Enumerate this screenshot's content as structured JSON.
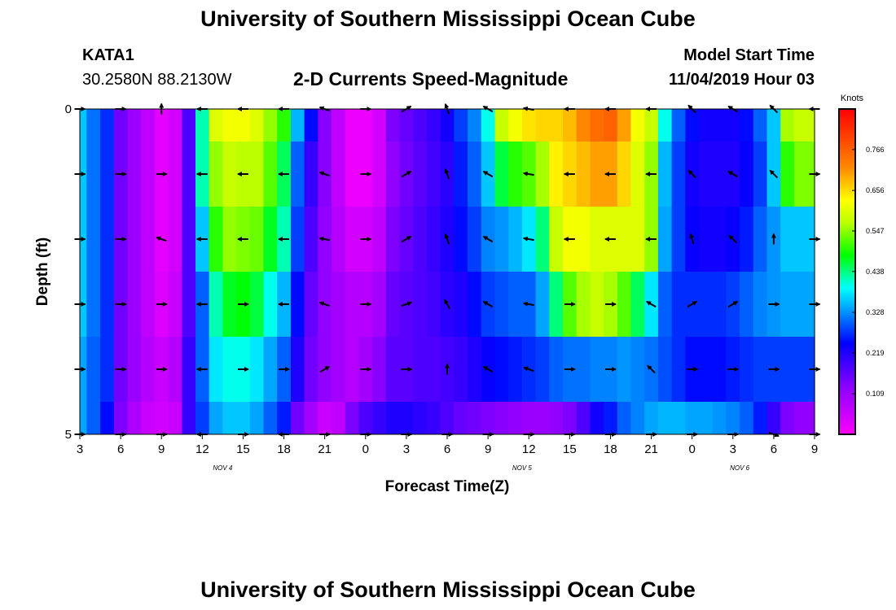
{
  "page": {
    "title_top": "University of Southern Mississippi Ocean Cube",
    "title_bottom": "University of Southern Mississippi Ocean Cube",
    "station_id": "KATA1",
    "station_coords": "30.2580N 88.2130W",
    "subtitle": "2-D Currents Speed-Magnitude",
    "model_start_label": "Model Start Time",
    "model_start_value": "11/04/2019 Hour 03"
  },
  "chart_data": {
    "type": "heatmap",
    "title": "2-D Currents Speed-Magnitude",
    "xlabel": "Forecast Time(Z)",
    "ylabel": "Depth (ft)",
    "colorbar_label": "Knots",
    "colorbar_ticks": [
      "0.766",
      "0.656",
      "0.547",
      "0.438",
      "0.328",
      "0.219",
      "0.109"
    ],
    "colorbar_tick_values": [
      0.766,
      0.656,
      0.547,
      0.438,
      0.328,
      0.219,
      0.109
    ],
    "value_range": [
      0,
      0.875
    ],
    "ylim": [
      0,
      5
    ],
    "y_ticks": [
      "0",
      "5"
    ],
    "xlim": [
      3,
      57
    ],
    "x_ticks": [
      {
        "hour": 3,
        "label": "3"
      },
      {
        "hour": 6,
        "label": "6"
      },
      {
        "hour": 9,
        "label": "9"
      },
      {
        "hour": 12,
        "label": "12"
      },
      {
        "hour": 15,
        "label": "15"
      },
      {
        "hour": 18,
        "label": "18"
      },
      {
        "hour": 21,
        "label": "21"
      },
      {
        "hour": 24,
        "label": "0"
      },
      {
        "hour": 27,
        "label": "3"
      },
      {
        "hour": 30,
        "label": "6"
      },
      {
        "hour": 33,
        "label": "9"
      },
      {
        "hour": 36,
        "label": "12"
      },
      {
        "hour": 39,
        "label": "15"
      },
      {
        "hour": 42,
        "label": "18"
      },
      {
        "hour": 45,
        "label": "21"
      },
      {
        "hour": 48,
        "label": "0"
      },
      {
        "hour": 51,
        "label": "3"
      },
      {
        "hour": 54,
        "label": "6"
      },
      {
        "hour": 57,
        "label": "9"
      }
    ],
    "date_labels": [
      {
        "hour": 13.5,
        "label": "NOV 4"
      },
      {
        "hour": 35.5,
        "label": "NOV 5"
      },
      {
        "hour": 51.5,
        "label": "NOV 6"
      }
    ],
    "depth_levels": [
      0.5,
      1.5,
      2.5,
      3.5,
      4.5,
      5.0
    ],
    "times": [
      3,
      4,
      5,
      6,
      7,
      8,
      9,
      10,
      11,
      12,
      13,
      14,
      15,
      16,
      17,
      18,
      19,
      20,
      21,
      22,
      23,
      24,
      25,
      26,
      27,
      28,
      29,
      30,
      31,
      32,
      33,
      34,
      35,
      36,
      37,
      38,
      39,
      40,
      41,
      42,
      43,
      44,
      45,
      46,
      47,
      48,
      49,
      50,
      51,
      52,
      53,
      54,
      55,
      56,
      57
    ],
    "speed_rows": [
      [
        0.36,
        0.31,
        0.27,
        0.15,
        0.11,
        0.07,
        0.03,
        0.05,
        0.18,
        0.42,
        0.6,
        0.62,
        0.62,
        0.6,
        0.55,
        0.5,
        0.35,
        0.25,
        0.13,
        0.07,
        0.02,
        0.02,
        0.05,
        0.14,
        0.16,
        0.18,
        0.2,
        0.23,
        0.28,
        0.32,
        0.4,
        0.58,
        0.62,
        0.65,
        0.66,
        0.66,
        0.68,
        0.72,
        0.75,
        0.76,
        0.7,
        0.62,
        0.58,
        0.4,
        0.3,
        0.25,
        0.23,
        0.23,
        0.23,
        0.25,
        0.3,
        0.36,
        0.56,
        0.58,
        0.58
      ],
      [
        0.36,
        0.31,
        0.27,
        0.15,
        0.11,
        0.07,
        0.03,
        0.05,
        0.18,
        0.42,
        0.55,
        0.58,
        0.57,
        0.57,
        0.52,
        0.45,
        0.3,
        0.2,
        0.13,
        0.07,
        0.02,
        0.02,
        0.05,
        0.12,
        0.15,
        0.17,
        0.19,
        0.21,
        0.26,
        0.3,
        0.36,
        0.46,
        0.5,
        0.52,
        0.56,
        0.64,
        0.66,
        0.68,
        0.7,
        0.7,
        0.66,
        0.6,
        0.55,
        0.35,
        0.28,
        0.23,
        0.22,
        0.22,
        0.22,
        0.24,
        0.28,
        0.36,
        0.5,
        0.54,
        0.54
      ],
      [
        0.36,
        0.31,
        0.27,
        0.15,
        0.11,
        0.07,
        0.03,
        0.05,
        0.18,
        0.36,
        0.5,
        0.55,
        0.54,
        0.53,
        0.47,
        0.42,
        0.28,
        0.18,
        0.12,
        0.08,
        0.05,
        0.05,
        0.07,
        0.14,
        0.16,
        0.18,
        0.2,
        0.22,
        0.25,
        0.28,
        0.32,
        0.33,
        0.35,
        0.38,
        0.44,
        0.58,
        0.62,
        0.62,
        0.6,
        0.6,
        0.6,
        0.6,
        0.55,
        0.34,
        0.28,
        0.24,
        0.23,
        0.23,
        0.24,
        0.26,
        0.3,
        0.33,
        0.36,
        0.36,
        0.36
      ],
      [
        0.36,
        0.31,
        0.27,
        0.15,
        0.11,
        0.07,
        0.04,
        0.06,
        0.18,
        0.3,
        0.42,
        0.47,
        0.48,
        0.46,
        0.4,
        0.35,
        0.25,
        0.16,
        0.12,
        0.1,
        0.08,
        0.08,
        0.1,
        0.16,
        0.17,
        0.18,
        0.19,
        0.21,
        0.22,
        0.25,
        0.28,
        0.29,
        0.3,
        0.3,
        0.34,
        0.44,
        0.52,
        0.56,
        0.58,
        0.56,
        0.52,
        0.45,
        0.38,
        0.3,
        0.27,
        0.27,
        0.27,
        0.27,
        0.28,
        0.3,
        0.32,
        0.33,
        0.34,
        0.34,
        0.34
      ],
      [
        0.34,
        0.3,
        0.27,
        0.15,
        0.11,
        0.08,
        0.06,
        0.08,
        0.2,
        0.3,
        0.38,
        0.4,
        0.4,
        0.38,
        0.34,
        0.3,
        0.22,
        0.15,
        0.12,
        0.1,
        0.08,
        0.1,
        0.13,
        0.17,
        0.17,
        0.18,
        0.18,
        0.19,
        0.2,
        0.22,
        0.24,
        0.25,
        0.26,
        0.27,
        0.28,
        0.3,
        0.31,
        0.31,
        0.32,
        0.32,
        0.33,
        0.32,
        0.31,
        0.29,
        0.27,
        0.25,
        0.25,
        0.25,
        0.26,
        0.27,
        0.28,
        0.28,
        0.28,
        0.28,
        0.28
      ],
      [
        0.34,
        0.3,
        0.25,
        0.14,
        0.09,
        0.06,
        0.05,
        0.06,
        0.2,
        0.28,
        0.34,
        0.36,
        0.36,
        0.34,
        0.3,
        0.26,
        0.15,
        0.1,
        0.06,
        0.07,
        0.14,
        0.18,
        0.2,
        0.22,
        0.22,
        0.21,
        0.2,
        0.18,
        0.16,
        0.15,
        0.14,
        0.13,
        0.12,
        0.11,
        0.11,
        0.12,
        0.14,
        0.18,
        0.23,
        0.26,
        0.3,
        0.32,
        0.34,
        0.35,
        0.35,
        0.34,
        0.34,
        0.33,
        0.32,
        0.3,
        0.26,
        0.2,
        0.14,
        0.12,
        0.12
      ]
    ],
    "vector_times": [
      3,
      6,
      9,
      12,
      15,
      18,
      21,
      24,
      27,
      30,
      33,
      36,
      39,
      42,
      45,
      48,
      51,
      54,
      57
    ],
    "vector_depths": [
      0,
      1,
      2,
      3,
      4,
      5
    ],
    "direction_rows": [
      [
        0,
        0,
        270,
        180,
        180,
        180,
        200,
        0,
        330,
        250,
        210,
        190,
        180,
        180,
        180,
        225,
        210,
        225,
        180
      ],
      [
        0,
        0,
        0,
        180,
        180,
        180,
        200,
        0,
        330,
        250,
        210,
        190,
        180,
        180,
        180,
        225,
        210,
        225,
        0
      ],
      [
        0,
        0,
        200,
        180,
        180,
        180,
        190,
        0,
        330,
        250,
        210,
        190,
        180,
        180,
        180,
        255,
        225,
        270,
        0
      ],
      [
        0,
        0,
        0,
        180,
        0,
        180,
        200,
        0,
        340,
        240,
        210,
        190,
        0,
        0,
        210,
        330,
        330,
        0,
        0
      ],
      [
        0,
        0,
        0,
        180,
        0,
        0,
        330,
        0,
        0,
        270,
        210,
        200,
        0,
        0,
        225,
        0,
        0,
        0,
        0
      ],
      [
        0,
        0,
        0,
        180,
        0,
        180,
        0,
        0,
        0,
        0,
        0,
        0,
        0,
        0,
        0,
        0,
        0,
        20,
        0
      ]
    ]
  }
}
